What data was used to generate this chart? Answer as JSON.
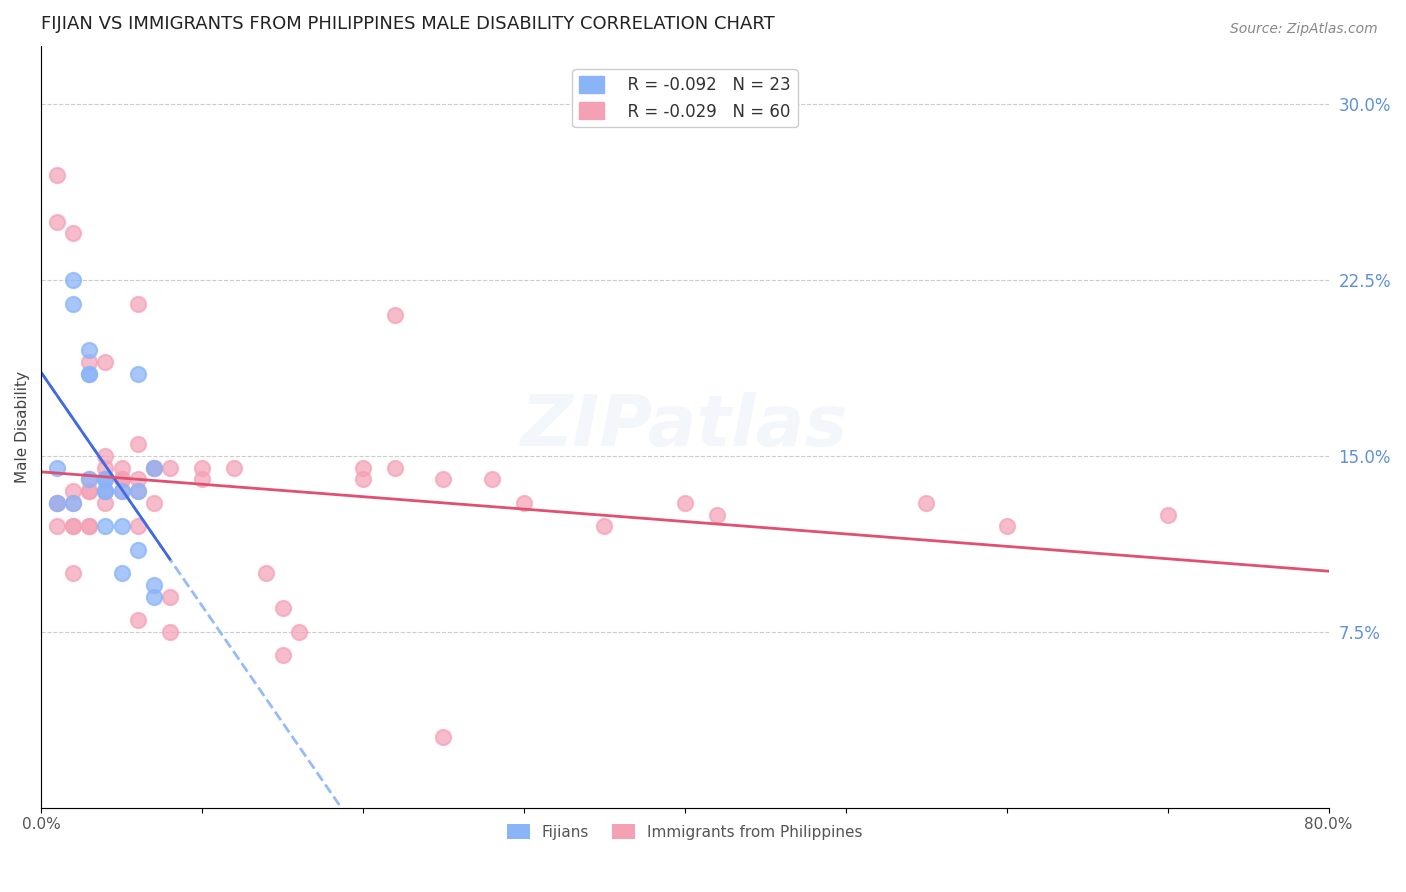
{
  "title": "FIJIAN VS IMMIGRANTS FROM PHILIPPINES MALE DISABILITY CORRELATION CHART",
  "source": "Source: ZipAtlas.com",
  "ylabel": "Male Disability",
  "xlim": [
    0.0,
    0.8
  ],
  "ylim": [
    0.0,
    0.325
  ],
  "x_tick_positions": [
    0.0,
    0.1,
    0.2,
    0.3,
    0.4,
    0.5,
    0.6,
    0.7,
    0.8
  ],
  "x_tick_labels": [
    "0.0%",
    "",
    "",
    "",
    "",
    "",
    "",
    "",
    "80.0%"
  ],
  "y_ticks_right": [
    0.075,
    0.15,
    0.225,
    0.3
  ],
  "y_tick_labels_right": [
    "7.5%",
    "15.0%",
    "22.5%",
    "30.0%"
  ],
  "watermark": "ZIPatlas",
  "legend_blue_r": "R = -0.092",
  "legend_blue_n": "N = 23",
  "legend_pink_r": "R = -0.029",
  "legend_pink_n": "N = 60",
  "fijian_color": "#8ab4f8",
  "philippines_color": "#f4a0b5",
  "fijian_line_color": "#4169e1",
  "philippines_line_color": "#e05070",
  "blue_trend_dashed_color": "#8ab4f8",
  "fijians_label": "Fijians",
  "philippines_label": "Immigrants from Philippines",
  "fijian_x": [
    0.01,
    0.02,
    0.02,
    0.03,
    0.03,
    0.03,
    0.04,
    0.04,
    0.04,
    0.04,
    0.05,
    0.05,
    0.06,
    0.06,
    0.07,
    0.07,
    0.01,
    0.02,
    0.03,
    0.04,
    0.05,
    0.06,
    0.07
  ],
  "fijian_y": [
    0.145,
    0.225,
    0.215,
    0.195,
    0.185,
    0.185,
    0.14,
    0.135,
    0.135,
    0.12,
    0.12,
    0.1,
    0.185,
    0.11,
    0.095,
    0.09,
    0.13,
    0.13,
    0.14,
    0.14,
    0.135,
    0.135,
    0.145
  ],
  "philippines_x": [
    0.01,
    0.01,
    0.01,
    0.02,
    0.02,
    0.02,
    0.02,
    0.02,
    0.03,
    0.03,
    0.03,
    0.03,
    0.03,
    0.04,
    0.04,
    0.04,
    0.04,
    0.04,
    0.05,
    0.05,
    0.05,
    0.05,
    0.06,
    0.06,
    0.06,
    0.06,
    0.06,
    0.07,
    0.07,
    0.07,
    0.08,
    0.08,
    0.1,
    0.1,
    0.12,
    0.14,
    0.15,
    0.16,
    0.2,
    0.2,
    0.22,
    0.22,
    0.25,
    0.28,
    0.3,
    0.35,
    0.4,
    0.42,
    0.55,
    0.7,
    0.01,
    0.01,
    0.02,
    0.03,
    0.04,
    0.06,
    0.08,
    0.15,
    0.25,
    0.6
  ],
  "philippines_y": [
    0.13,
    0.13,
    0.12,
    0.13,
    0.135,
    0.12,
    0.12,
    0.1,
    0.14,
    0.135,
    0.135,
    0.12,
    0.12,
    0.19,
    0.15,
    0.145,
    0.14,
    0.13,
    0.145,
    0.14,
    0.14,
    0.135,
    0.215,
    0.155,
    0.14,
    0.135,
    0.12,
    0.145,
    0.145,
    0.13,
    0.145,
    0.09,
    0.145,
    0.14,
    0.145,
    0.1,
    0.085,
    0.075,
    0.145,
    0.14,
    0.21,
    0.145,
    0.14,
    0.14,
    0.13,
    0.12,
    0.13,
    0.125,
    0.13,
    0.125,
    0.27,
    0.25,
    0.245,
    0.19,
    0.135,
    0.08,
    0.075,
    0.065,
    0.03,
    0.12
  ]
}
